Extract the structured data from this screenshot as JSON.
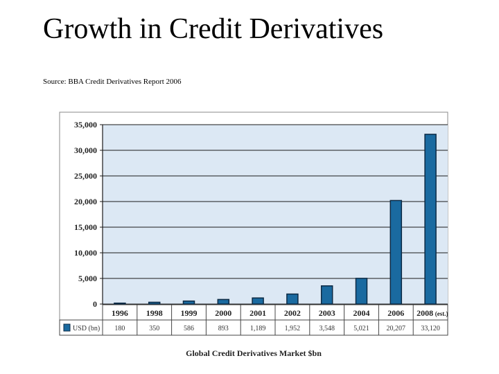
{
  "slide": {
    "title": "Growth in Credit Derivatives",
    "source": "Source: BBA Credit Derivatives Report 2006"
  },
  "chart_data": {
    "type": "bar",
    "title": "",
    "caption": "Global Credit Derivatives Market $bn",
    "categories": [
      "1996",
      "1998",
      "1999",
      "2000",
      "2001",
      "2002",
      "2003",
      "2004",
      "2006",
      "2008"
    ],
    "category_notes": [
      "",
      "",
      "",
      "",
      "",
      "",
      "",
      "",
      "",
      "(est.)"
    ],
    "series": [
      {
        "name": "USD (bn)",
        "values": [
          180,
          350,
          586,
          893,
          1189,
          1952,
          3548,
          5021,
          20207,
          33120
        ],
        "value_labels": [
          "180",
          "350",
          "586",
          "893",
          "1,189",
          "1,952",
          "3,548",
          "5,021",
          "20,207",
          "33,120"
        ]
      }
    ],
    "ylim": [
      0,
      35000
    ],
    "yticks": [
      0,
      5000,
      10000,
      15000,
      20000,
      25000,
      30000,
      35000
    ],
    "ytick_labels": [
      "0",
      "5,000",
      "10,000",
      "15,000",
      "20,000",
      "25,000",
      "30,000",
      "35,000"
    ],
    "grid": true,
    "legend": "data table below the x-axis",
    "colors": {
      "bar": "#1a6aa0",
      "bar_edge": "#0d2a44",
      "plot_bg": "#dce8f4",
      "gridline": "#1a1a1a"
    }
  }
}
